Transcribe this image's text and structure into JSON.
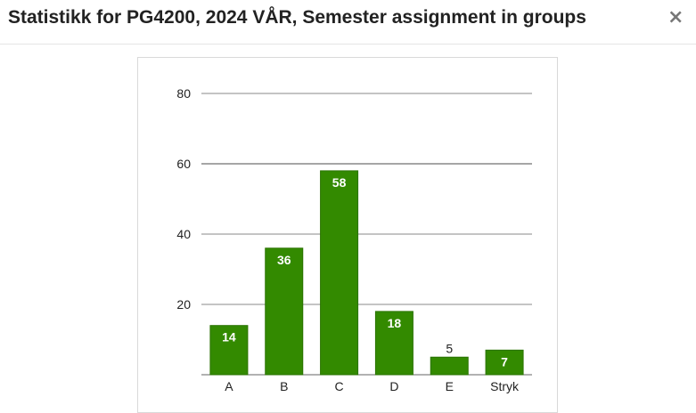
{
  "modal": {
    "title": "Statistikk for PG4200, 2024 VÅR, Semester assignment in groups",
    "close_glyph": "×",
    "close_icon": "close-icon"
  },
  "chart_data": {
    "type": "bar",
    "categories": [
      "A",
      "B",
      "C",
      "D",
      "E",
      "Stryk"
    ],
    "values": [
      14,
      36,
      58,
      18,
      5,
      7
    ],
    "yticks": [
      20,
      40,
      60,
      80
    ],
    "ylim": [
      0,
      90
    ],
    "grid": true,
    "legend": "none",
    "bar_color": "#338a00",
    "bar_edge_color": "#2a7300",
    "gridline_color": "#888888"
  }
}
